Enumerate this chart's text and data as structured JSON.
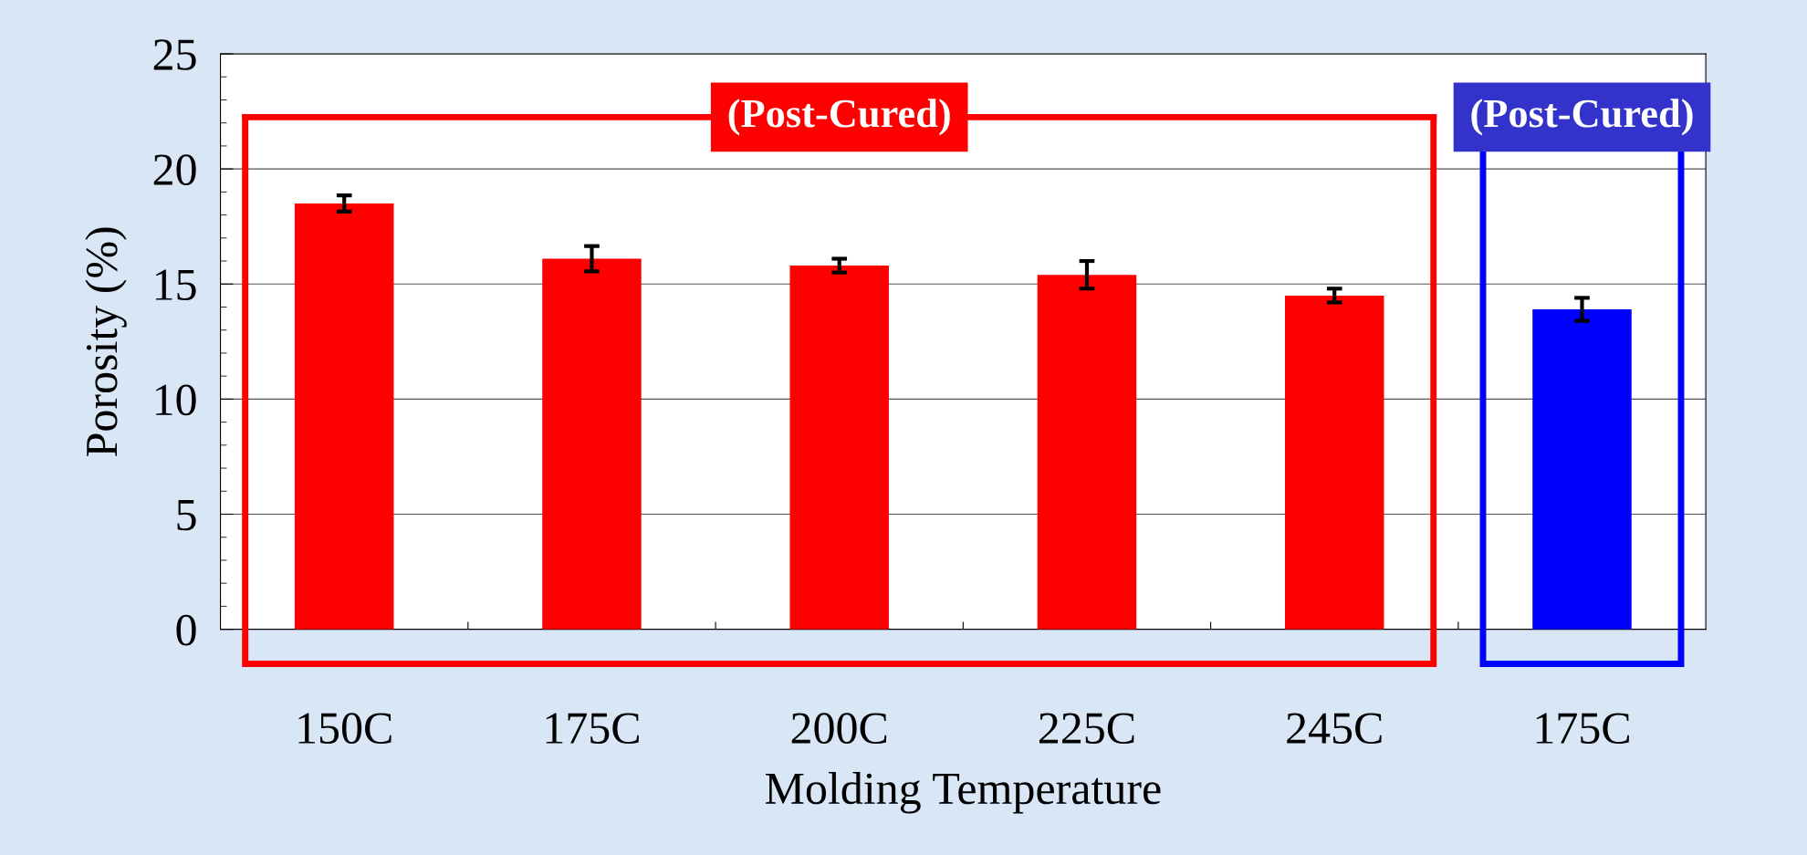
{
  "chart_data": {
    "type": "bar",
    "xlabel": "Molding Temperature",
    "ylabel": "Porosity (%)",
    "categories": [
      "150C",
      "175C",
      "200C",
      "225C",
      "245C",
      "175C"
    ],
    "values": [
      18.5,
      16.1,
      15.8,
      15.4,
      14.5,
      13.9
    ],
    "errors": [
      0.35,
      0.55,
      0.3,
      0.6,
      0.3,
      0.5
    ],
    "colors": [
      "#ff0000",
      "#ff0000",
      "#ff0000",
      "#ff0000",
      "#ff0000",
      "#0000ff"
    ],
    "ylim": [
      0,
      25
    ],
    "yticks": [
      0,
      5,
      10,
      15,
      20,
      25
    ],
    "grid": "y",
    "annotations": [
      "(Post-Cured)",
      "(Post-Cured)"
    ]
  }
}
